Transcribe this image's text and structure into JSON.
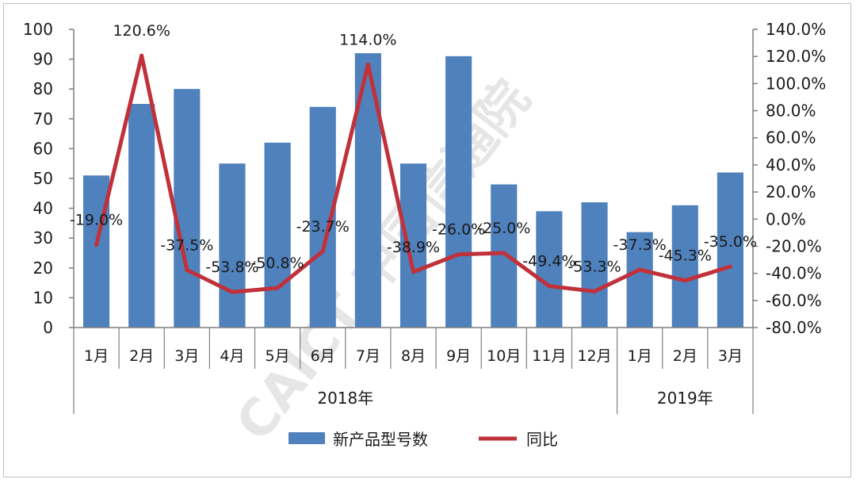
{
  "chart_data": {
    "type": "bar",
    "categories": [
      "1月",
      "2月",
      "3月",
      "4月",
      "5月",
      "6月",
      "7月",
      "8月",
      "9月",
      "10月",
      "11月",
      "12月",
      "1月",
      "2月",
      "3月"
    ],
    "groups": [
      {
        "label": "2018年",
        "count": 12
      },
      {
        "label": "2019年",
        "count": 3
      }
    ],
    "series": [
      {
        "name": "新产品型号数",
        "type": "bar",
        "axis": "left",
        "color": "#4f81bd",
        "values": [
          51,
          75,
          80,
          55,
          62,
          74,
          92,
          55,
          91,
          48,
          39,
          42,
          32,
          41,
          52
        ]
      },
      {
        "name": "同比",
        "type": "line",
        "axis": "right",
        "color": "#c0313a",
        "values": [
          -19.0,
          120.6,
          -37.5,
          -53.8,
          -50.8,
          -23.7,
          114.0,
          -38.9,
          -26.0,
          -25.0,
          -49.4,
          -53.3,
          -37.3,
          -45.3,
          -35.0
        ],
        "labels": [
          "-19.0%",
          "120.6%",
          "-37.5%",
          "-53.8%",
          "-50.8%",
          "-23.7%",
          "114.0%",
          "-38.9%",
          "-26.0%",
          "-25.0%",
          "-49.4%",
          "-53.3%",
          "-37.3%",
          "-45.3%",
          "-35.0%"
        ]
      }
    ],
    "y_left": {
      "min": 0,
      "max": 100,
      "step": 10,
      "ticks": [
        "0",
        "10",
        "20",
        "30",
        "40",
        "50",
        "60",
        "70",
        "80",
        "90",
        "100"
      ]
    },
    "y_right": {
      "min": -80,
      "max": 140,
      "step": 20,
      "ticks": [
        "-80.0%",
        "-60.0%",
        "-40.0%",
        "-20.0%",
        "0.0%",
        "20.0%",
        "40.0%",
        "60.0%",
        "80.0%",
        "100.0%",
        "120.0%",
        "140.0%"
      ]
    },
    "grid": false,
    "legend_position": "bottom",
    "watermark": "CAICT 中国信通院"
  }
}
